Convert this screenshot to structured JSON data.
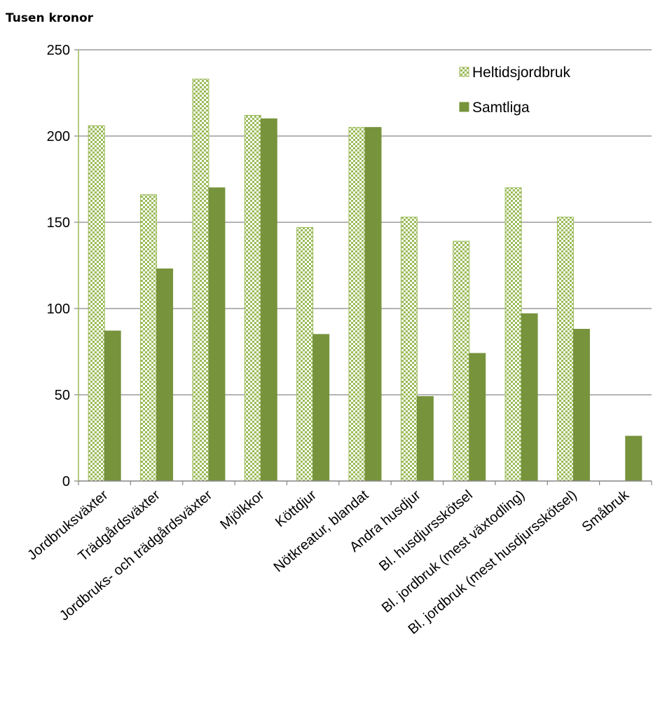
{
  "chart_data": {
    "type": "bar",
    "ylabel": "Tusen kronor",
    "ylim": [
      0,
      250
    ],
    "yticks": [
      0,
      50,
      100,
      150,
      200,
      250
    ],
    "grid": true,
    "legend_position": "top-right",
    "categories": [
      "Jordbruksväxter",
      "Trädgårdsväxter",
      "Jordbruks- och trädgårdsväxter",
      "Mjölkkor",
      "Köttdjur",
      "Nötkreatur, blandat",
      "Andra husdjur",
      "Bl. husdjursskötsel",
      "Bl. jordbruk (mest växtodling)",
      "Bl. jordbruk (mest husdjursskötsel)",
      "Småbruk"
    ],
    "series": [
      {
        "name": "Heltidsjordbruk",
        "color": "#9bbb59",
        "pattern": "checker",
        "values": [
          206,
          166,
          233,
          212,
          147,
          205,
          153,
          139,
          170,
          153,
          null
        ]
      },
      {
        "name": "Samtliga",
        "color": "#77933c",
        "pattern": "solid",
        "values": [
          87,
          123,
          170,
          210,
          85,
          205,
          49,
          74,
          97,
          88,
          26
        ]
      }
    ]
  }
}
